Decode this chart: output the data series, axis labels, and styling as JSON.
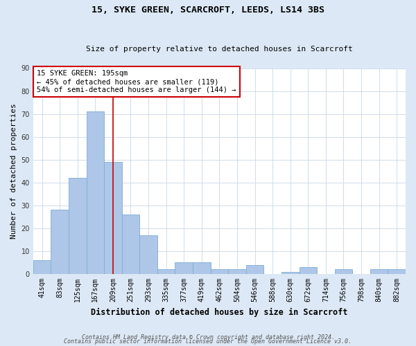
{
  "title": "15, SYKE GREEN, SCARCROFT, LEEDS, LS14 3BS",
  "subtitle": "Size of property relative to detached houses in Scarcroft",
  "xlabel": "Distribution of detached houses by size in Scarcroft",
  "ylabel": "Number of detached properties",
  "footnote1": "Contains HM Land Registry data © Crown copyright and database right 2024.",
  "footnote2": "Contains public sector information licensed under the Open Government Licence v3.0.",
  "categories": [
    "41sqm",
    "83sqm",
    "125sqm",
    "167sqm",
    "209sqm",
    "251sqm",
    "293sqm",
    "335sqm",
    "377sqm",
    "419sqm",
    "462sqm",
    "504sqm",
    "546sqm",
    "588sqm",
    "630sqm",
    "672sqm",
    "714sqm",
    "756sqm",
    "798sqm",
    "840sqm",
    "882sqm"
  ],
  "values": [
    6,
    28,
    42,
    71,
    49,
    26,
    17,
    2,
    5,
    5,
    2,
    2,
    4,
    0,
    1,
    3,
    0,
    2,
    0,
    2,
    2
  ],
  "bar_color": "#aec6e8",
  "bar_edge_color": "#7aafd4",
  "bg_color": "#dce8f5",
  "plot_bg_color": "#ffffff",
  "grid_color": "#c8d8e8",
  "vline_x": 4.0,
  "vline_color": "#cc0000",
  "annotation_text": "15 SYKE GREEN: 195sqm\n← 45% of detached houses are smaller (119)\n54% of semi-detached houses are larger (144) →",
  "annotation_box_color": "#ffffff",
  "annotation_box_edge_color": "#cc0000",
  "ylim": [
    0,
    90
  ],
  "yticks": [
    0,
    10,
    20,
    30,
    40,
    50,
    60,
    70,
    80,
    90
  ],
  "title_fontsize": 9.5,
  "subtitle_fontsize": 8.0,
  "xlabel_fontsize": 8.5,
  "ylabel_fontsize": 8.0,
  "tick_fontsize": 7.0,
  "annotation_fontsize": 7.5,
  "footnote_fontsize": 6.0
}
